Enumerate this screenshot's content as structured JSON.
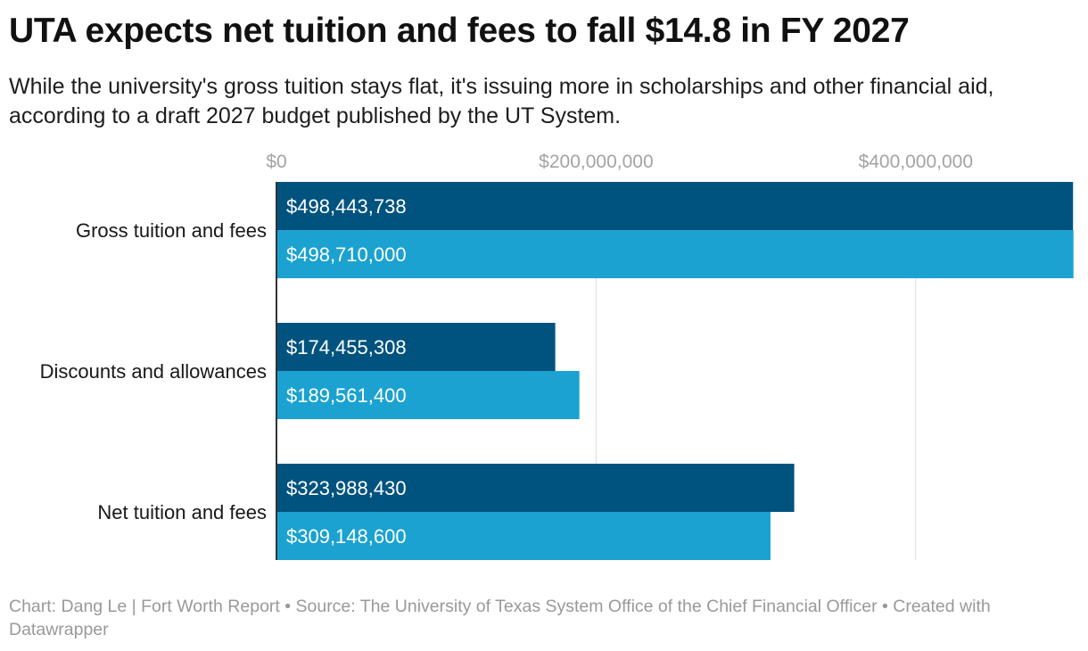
{
  "title": "UTA expects net tuition and fees to fall $14.8 in FY 2027",
  "subtitle": "While the university's gross tuition stays flat, it's issuing more in scholarships and other financial aid, according to a draft 2027 budget published by the UT System.",
  "footer": "Chart: Dang Le | Fort Worth Report • Source: The University of Texas System Office of the Chief Financial Officer  • Created with Datawrapper",
  "colors": {
    "series_a": "#00537e",
    "series_b": "#1ba2d0",
    "grid": "#dedede",
    "axis": "#333333",
    "tick_text": "#a3a3a3",
    "bar_label": "#ffffff",
    "category_text": "#181818"
  },
  "chart_data": {
    "type": "bar",
    "orientation": "horizontal",
    "categories": [
      "Gross tuition and fees",
      "Discounts and allowances",
      "Net tuition and fees"
    ],
    "series": [
      {
        "values": [
          498443738,
          174455308,
          323988430
        ],
        "labels": [
          "$498,443,738",
          "$174,455,308",
          "$323,988,430"
        ]
      },
      {
        "values": [
          498710000,
          189561400,
          309148600
        ],
        "labels": [
          "$498,710,000",
          "$189,561,400",
          "$309,148,600"
        ]
      }
    ],
    "xticks": [
      0,
      200000000,
      400000000
    ],
    "xtick_labels": [
      "$0",
      "$200,000,000",
      "$400,000,000"
    ],
    "xlim": [
      0,
      500000000
    ],
    "grid": true,
    "legend": "none"
  }
}
